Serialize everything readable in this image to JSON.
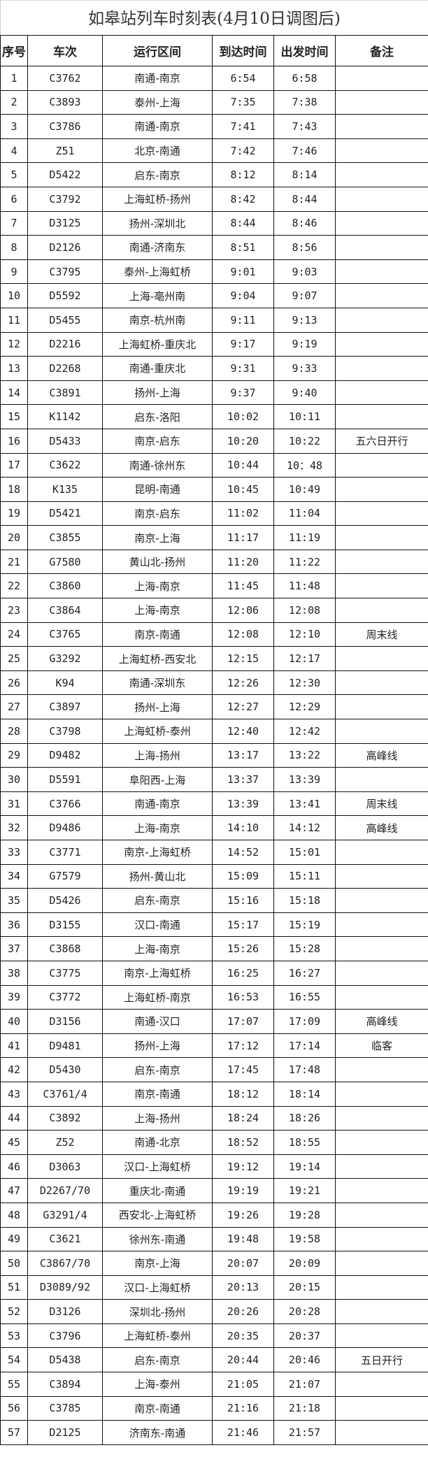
{
  "title": "如皋站列车时刻表(4月10日调图后)",
  "headers": [
    "序号",
    "车次",
    "运行区间",
    "到达时间",
    "出发时间",
    "备注"
  ],
  "rows": [
    [
      "1",
      "C3762",
      "南通-南京",
      "6:54",
      "6:58",
      ""
    ],
    [
      "2",
      "C3893",
      "泰州-上海",
      "7:35",
      "7:38",
      ""
    ],
    [
      "3",
      "C3786",
      "南通-南京",
      "7:41",
      "7:43",
      ""
    ],
    [
      "4",
      "Z51",
      "北京-南通",
      "7:42",
      "7:46",
      ""
    ],
    [
      "5",
      "D5422",
      "启东-南京",
      "8:12",
      "8:14",
      ""
    ],
    [
      "6",
      "C3792",
      "上海虹桥-扬州",
      "8:42",
      "8:44",
      ""
    ],
    [
      "7",
      "D3125",
      "扬州-深圳北",
      "8:44",
      "8:46",
      ""
    ],
    [
      "8",
      "D2126",
      "南通-济南东",
      "8:51",
      "8:56",
      ""
    ],
    [
      "9",
      "C3795",
      "泰州-上海虹桥",
      "9:01",
      "9:03",
      ""
    ],
    [
      "10",
      "D5592",
      "上海-亳州南",
      "9:04",
      "9:07",
      ""
    ],
    [
      "11",
      "D5455",
      "南京-杭州南",
      "9:11",
      "9:13",
      ""
    ],
    [
      "12",
      "D2216",
      "上海虹桥-重庆北",
      "9:17",
      "9:19",
      ""
    ],
    [
      "13",
      "D2268",
      "南通-重庆北",
      "9:31",
      "9:33",
      ""
    ],
    [
      "14",
      "C3891",
      "扬州-上海",
      "9:37",
      "9:40",
      ""
    ],
    [
      "15",
      "K1142",
      "启东-洛阳",
      "10:02",
      "10:11",
      ""
    ],
    [
      "16",
      "D5433",
      "南京-启东",
      "10:20",
      "10:22",
      "五六日开行"
    ],
    [
      "17",
      "C3622",
      "南通-徐州东",
      "10:44",
      "10：48",
      ""
    ],
    [
      "18",
      "K135",
      "昆明-南通",
      "10:45",
      "10:49",
      ""
    ],
    [
      "19",
      "D5421",
      "南京-启东",
      "11:02",
      "11:04",
      ""
    ],
    [
      "20",
      "C3855",
      "南京-上海",
      "11:17",
      "11:19",
      ""
    ],
    [
      "21",
      "G7580",
      "黄山北-扬州",
      "11:20",
      "11:22",
      ""
    ],
    [
      "22",
      "C3860",
      "上海-南京",
      "11:45",
      "11:48",
      ""
    ],
    [
      "23",
      "C3864",
      "上海-南京",
      "12:06",
      "12:08",
      ""
    ],
    [
      "24",
      "C3765",
      "南京-南通",
      "12:08",
      "12:10",
      "周末线"
    ],
    [
      "25",
      "G3292",
      "上海虹桥-西安北",
      "12:15",
      "12:17",
      ""
    ],
    [
      "26",
      "K94",
      "南通-深圳东",
      "12:26",
      "12:30",
      ""
    ],
    [
      "27",
      "C3897",
      "扬州-上海",
      "12:27",
      "12:29",
      ""
    ],
    [
      "28",
      "C3798",
      "上海虹桥-泰州",
      "12:40",
      "12:42",
      ""
    ],
    [
      "29",
      "D9482",
      "上海-扬州",
      "13:17",
      "13:22",
      "高峰线"
    ],
    [
      "30",
      "D5591",
      "阜阳西-上海",
      "13:37",
      "13:39",
      ""
    ],
    [
      "31",
      "C3766",
      "南通-南京",
      "13:39",
      "13:41",
      "周末线"
    ],
    [
      "32",
      "D9486",
      "上海-南京",
      "14:10",
      "14:12",
      "高峰线"
    ],
    [
      "33",
      "C3771",
      "南京-上海虹桥",
      "14:52",
      "15:01",
      ""
    ],
    [
      "34",
      "G7579",
      "扬州-黄山北",
      "15:09",
      "15:11",
      ""
    ],
    [
      "35",
      "D5426",
      "启东-南京",
      "15:16",
      "15:18",
      ""
    ],
    [
      "36",
      "D3155",
      "汉口-南通",
      "15:17",
      "15:19",
      ""
    ],
    [
      "37",
      "C3868",
      "上海-南京",
      "15:26",
      "15:28",
      ""
    ],
    [
      "38",
      "C3775",
      "南京-上海虹桥",
      "16:25",
      "16:27",
      ""
    ],
    [
      "39",
      "C3772",
      "上海虹桥-南京",
      "16:53",
      "16:55",
      ""
    ],
    [
      "40",
      "D3156",
      "南通-汉口",
      "17:07",
      "17:09",
      "高峰线"
    ],
    [
      "41",
      "D9481",
      "扬州-上海",
      "17:12",
      "17:14",
      "临客"
    ],
    [
      "42",
      "D5430",
      "启东-南京",
      "17:45",
      "17:48",
      ""
    ],
    [
      "43",
      "C3761/4",
      "南京-南通",
      "18:12",
      "18:14",
      ""
    ],
    [
      "44",
      "C3892",
      "上海-扬州",
      "18:24",
      "18:26",
      ""
    ],
    [
      "45",
      "Z52",
      "南通-北京",
      "18:52",
      "18:55",
      ""
    ],
    [
      "46",
      "D3063",
      "汉口-上海虹桥",
      "19:12",
      "19:14",
      ""
    ],
    [
      "47",
      "D2267/70",
      "重庆北-南通",
      "19:19",
      "19:21",
      ""
    ],
    [
      "48",
      "G3291/4",
      "西安北-上海虹桥",
      "19:26",
      "19:28",
      ""
    ],
    [
      "49",
      "C3621",
      "徐州东-南通",
      "19:48",
      "19:58",
      ""
    ],
    [
      "50",
      "C3867/70",
      "南京-上海",
      "20:07",
      "20:09",
      ""
    ],
    [
      "51",
      "D3089/92",
      "汉口-上海虹桥",
      "20:13",
      "20:15",
      ""
    ],
    [
      "52",
      "D3126",
      "深圳北-扬州",
      "20:26",
      "20:28",
      ""
    ],
    [
      "53",
      "C3796",
      "上海虹桥-泰州",
      "20:35",
      "20:37",
      ""
    ],
    [
      "54",
      "D5438",
      "启东-南京",
      "20:44",
      "20:46",
      "五日开行"
    ],
    [
      "55",
      "C3894",
      "上海-泰州",
      "21:05",
      "21:07",
      ""
    ],
    [
      "56",
      "C3785",
      "南京-南通",
      "21:16",
      "21:18",
      ""
    ],
    [
      "57",
      "D2125",
      "济南东-南通",
      "21:46",
      "21:57",
      ""
    ]
  ]
}
